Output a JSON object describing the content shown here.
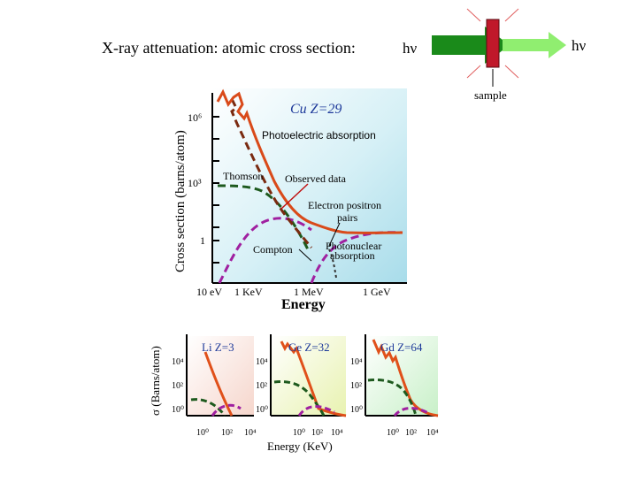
{
  "title": "X-ray  attenuation: atomic cross section:",
  "beam": {
    "in_label": "hν",
    "out_label": "hν",
    "sample_label": "sample",
    "colors": {
      "arrow": "#1a8a1a",
      "sample": "#c0182a"
    }
  },
  "main_plot": {
    "ylabel": "Cross section (barns/atom)",
    "ytick_labels": [
      "10⁶",
      "10³",
      "1"
    ],
    "xtick_labels": [
      "10 eV",
      "1 KeV",
      "1 MeV",
      "1 GeV"
    ],
    "xlabel": "Energy",
    "element_label": "Cu  Z=29",
    "annotations": {
      "photoelectric": "Photoelectric absorption",
      "thomson": "Thomson",
      "observed": "Observed data",
      "pair_line1": "Electron positron",
      "pair_line2": "pairs",
      "compton": "Compton",
      "photonuclear_line1": "Photonuclear",
      "photonuclear_line2": "absorption"
    },
    "colors": {
      "observed": "#d94a1a",
      "photoelectric": "#7a2a10",
      "thomson": "#1e5a1e",
      "compton_pair": "#a020a0"
    }
  },
  "small_plots": {
    "ylabel": "σ (Barns/atom)",
    "xlabel": "Energy  (KeV)",
    "panels": [
      {
        "label": "Li  Z=3",
        "yticks": [
          "10⁴",
          "10²",
          "10⁰"
        ],
        "xticks": [
          "10⁰",
          "10²",
          "10⁴"
        ]
      },
      {
        "label": "Ge  Z=32",
        "yticks": [
          "10⁴",
          "10²",
          "10⁰"
        ],
        "xticks": [
          "10⁰",
          "10²",
          "10⁴"
        ]
      },
      {
        "label": "Gd  Z=64",
        "yticks": [
          "10⁴",
          "10²",
          "10⁰"
        ],
        "xticks": [
          "10⁰",
          "10²",
          "10⁴"
        ]
      }
    ]
  }
}
